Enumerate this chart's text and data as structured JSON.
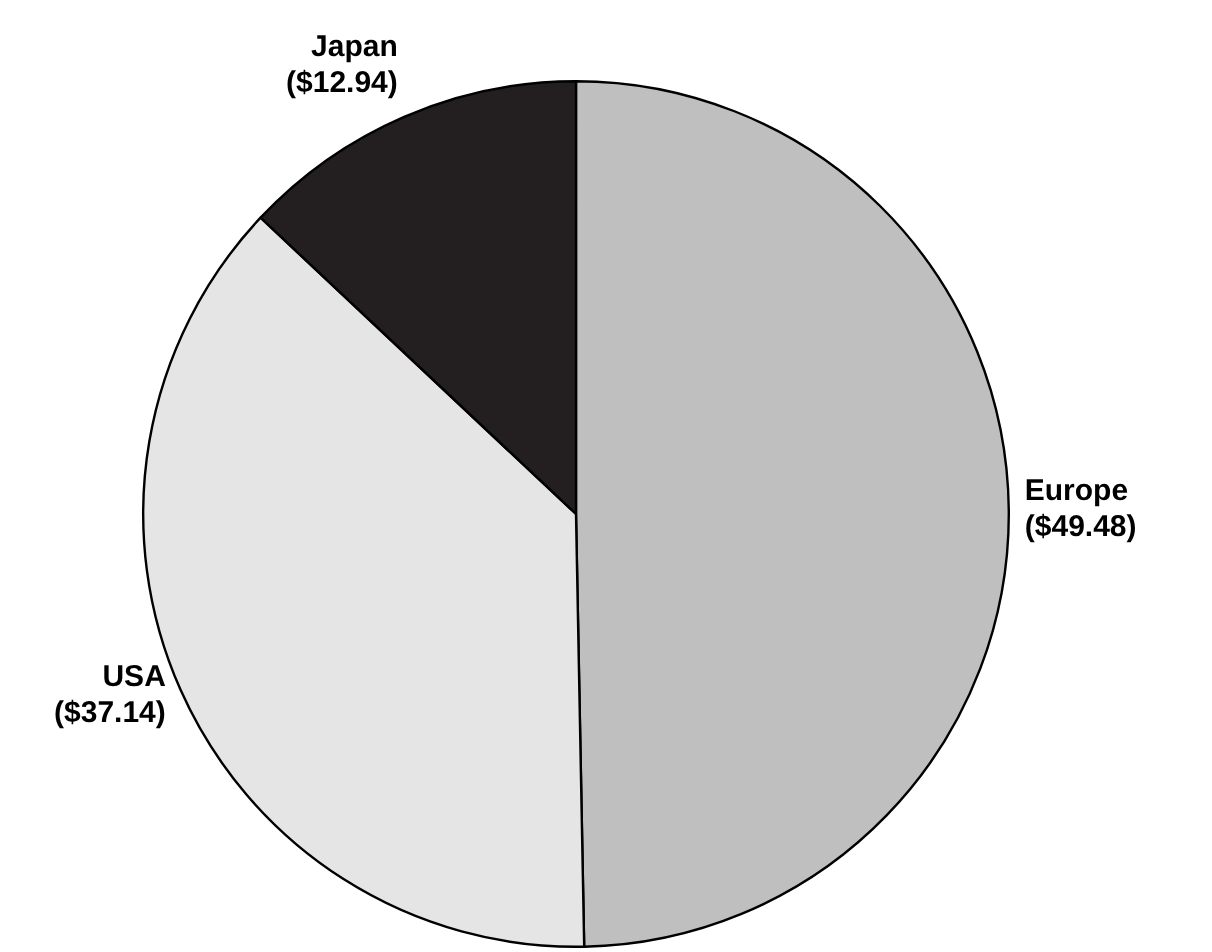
{
  "chart_data": {
    "type": "pie",
    "categories": [
      "Europe",
      "USA",
      "Japan"
    ],
    "values": [
      49.48,
      37.14,
      12.94
    ],
    "value_labels": [
      "($49.48)",
      "($37.14)",
      "($12.94)"
    ],
    "colors": [
      "#bfbfbf",
      "#e5e5e5",
      "#231f20"
    ],
    "legend": false
  }
}
